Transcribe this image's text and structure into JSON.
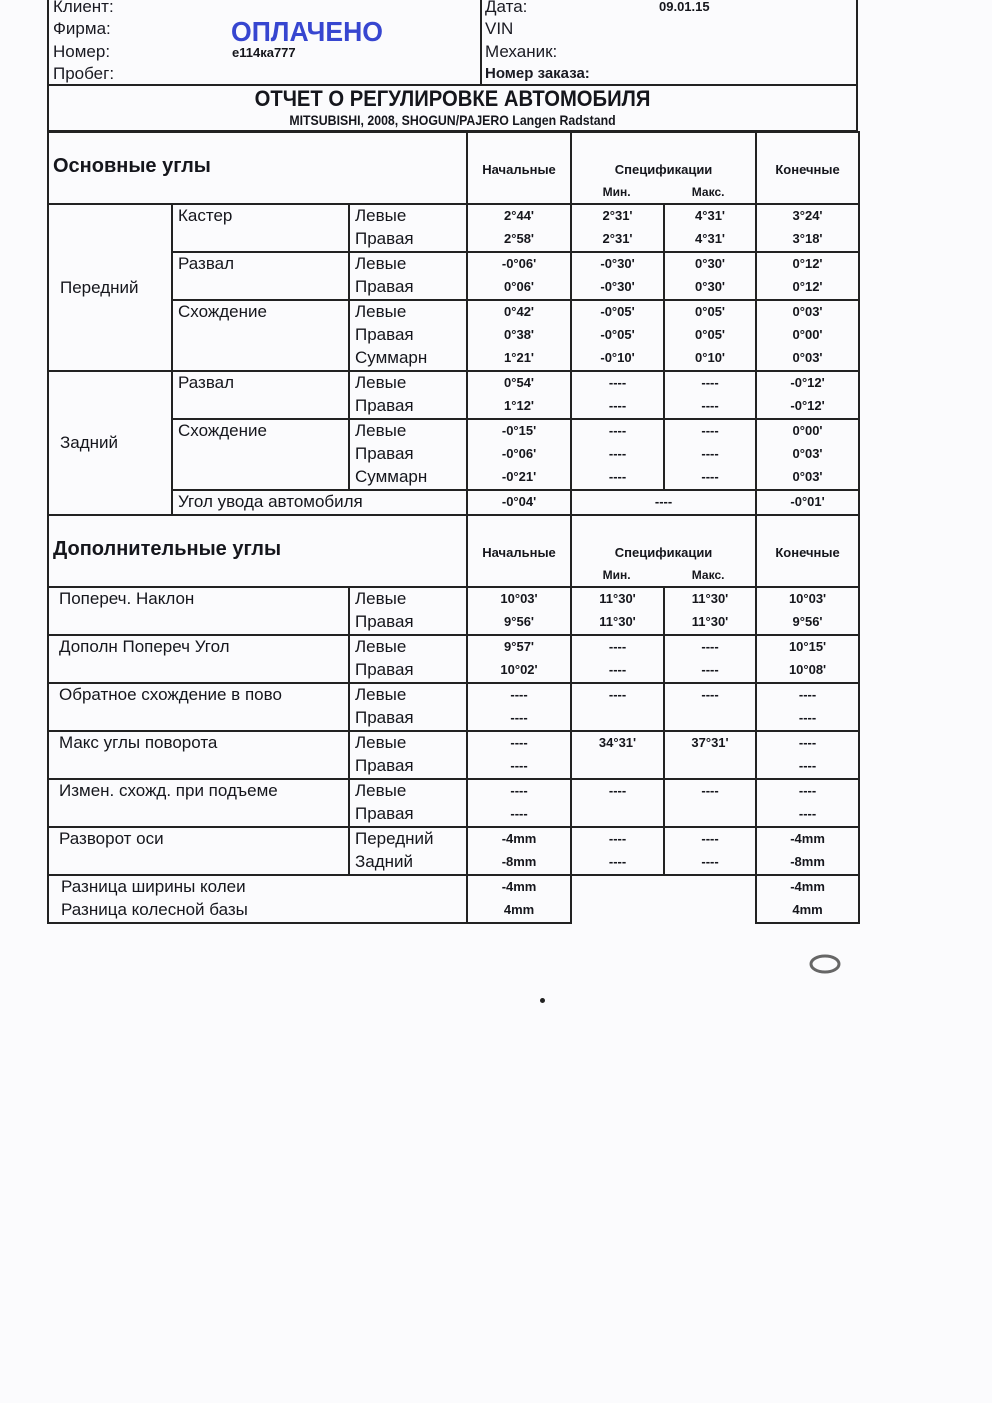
{
  "info": {
    "client_label": "Клиент:",
    "firm_label": "Фирма:",
    "number_label": "Номер:",
    "number_value": "е114ка777",
    "mileage_label": "Пробег:",
    "date_label": "Дата:",
    "date_value": "09.01.15",
    "vin_label": "VIN",
    "mechanic_label": "Механик:",
    "order_label": "Номер заказа:",
    "stamp": "ОПЛАЧЕНО",
    "stamp_color": "#2233cc"
  },
  "title": "ОТЧЕТ О РЕГУЛИРОВКЕ АВТОМОБИЛЯ",
  "subtitle": "MITSUBISHI, 2008, SHOGUN/PAJERO Langen Radstand",
  "headers": {
    "initial": "Начальные",
    "spec": "Спецификации",
    "min": "Мин.",
    "max": "Макс.",
    "final": "Конечные"
  },
  "main": {
    "title": "Основные углы",
    "groups": [
      {
        "label": "Передний",
        "params": [
          {
            "label": "Кастер",
            "rows": [
              {
                "side": "Левые",
                "initial": "2°44'",
                "min": "2°31'",
                "max": "4°31'",
                "final": "3°24'"
              },
              {
                "side": "Правая",
                "initial": "2°58'",
                "min": "2°31'",
                "max": "4°31'",
                "final": "3°18'"
              }
            ]
          },
          {
            "label": "Развал",
            "rows": [
              {
                "side": "Левые",
                "initial": "-0°06'",
                "min": "-0°30'",
                "max": "0°30'",
                "final": "0°12'"
              },
              {
                "side": "Правая",
                "initial": "0°06'",
                "min": "-0°30'",
                "max": "0°30'",
                "final": "0°12'"
              }
            ]
          },
          {
            "label": "Схождение",
            "rows": [
              {
                "side": "Левые",
                "initial": "0°42'",
                "min": "-0°05'",
                "max": "0°05'",
                "final": "0°03'"
              },
              {
                "side": "Правая",
                "initial": "0°38'",
                "min": "-0°05'",
                "max": "0°05'",
                "final": "0°00'"
              },
              {
                "side": "Суммарн",
                "initial": "1°21'",
                "min": "-0°10'",
                "max": "0°10'",
                "final": "0°03'"
              }
            ]
          }
        ]
      },
      {
        "label": "Задний",
        "params": [
          {
            "label": "Развал",
            "rows": [
              {
                "side": "Левые",
                "initial": "0°54'",
                "min": "----",
                "max": "----",
                "final": "-0°12'"
              },
              {
                "side": "Правая",
                "initial": "1°12'",
                "min": "----",
                "max": "----",
                "final": "-0°12'"
              }
            ]
          },
          {
            "label": "Схождение",
            "rows": [
              {
                "side": "Левые",
                "initial": "-0°15'",
                "min": "----",
                "max": "----",
                "final": "0°00'"
              },
              {
                "side": "Правая",
                "initial": "-0°06'",
                "min": "----",
                "max": "----",
                "final": "0°03'"
              },
              {
                "side": "Суммарн",
                "initial": "-0°21'",
                "min": "----",
                "max": "----",
                "final": "0°03'"
              }
            ]
          }
        ],
        "thrust": {
          "label": "Угол увода автомобиля",
          "initial": "-0°04'",
          "spec": "----",
          "final": "-0°01'"
        }
      }
    ]
  },
  "additional": {
    "title": "Дополнительные углы",
    "items": [
      {
        "label": "Попереч. Наклон",
        "rows": [
          {
            "side": "Левые",
            "initial": "10°03'",
            "min": "11°30'",
            "max": "11°30'",
            "final": "10°03'"
          },
          {
            "side": "Правая",
            "initial": "9°56'",
            "min": "11°30'",
            "max": "11°30'",
            "final": "9°56'"
          }
        ]
      },
      {
        "label": "Дополн Попереч Угол",
        "rows": [
          {
            "side": "Левые",
            "initial": "9°57'",
            "min": "----",
            "max": "----",
            "final": "10°15'"
          },
          {
            "side": "Правая",
            "initial": "10°02'",
            "min": "----",
            "max": "----",
            "final": "10°08'"
          }
        ]
      },
      {
        "label": "Обратное схождение в пово",
        "rows": [
          {
            "side": "Левые",
            "initial": "----",
            "min": "----",
            "max": "----",
            "final": "----"
          },
          {
            "side": "Правая",
            "initial": "----",
            "min": "",
            "max": "",
            "final": "----"
          }
        ]
      },
      {
        "label": "Макс углы поворота",
        "rows": [
          {
            "side": "Левые",
            "initial": "----",
            "min": "34°31'",
            "max": "37°31'",
            "final": "----"
          },
          {
            "side": "Правая",
            "initial": "----",
            "min": "",
            "max": "",
            "final": "----"
          }
        ]
      },
      {
        "label": "Измен. схожд. при подъеме",
        "rows": [
          {
            "side": "Левые",
            "initial": "----",
            "min": "----",
            "max": "----",
            "final": "----"
          },
          {
            "side": "Правая",
            "initial": "----",
            "min": "",
            "max": "",
            "final": "----"
          }
        ]
      },
      {
        "label": "Разворот оси",
        "rows": [
          {
            "side": "Передний",
            "initial": "-4mm",
            "min": "----",
            "max": "----",
            "final": "-4mm"
          },
          {
            "side": "Задний",
            "initial": "-8mm",
            "min": "----",
            "max": "----",
            "final": "-8mm"
          }
        ]
      }
    ],
    "differences": [
      {
        "label": "Разница ширины колеи",
        "initial": "-4mm",
        "final": "-4mm"
      },
      {
        "label": "Разница колесной базы",
        "initial": "4mm",
        "final": "4mm"
      }
    ]
  }
}
